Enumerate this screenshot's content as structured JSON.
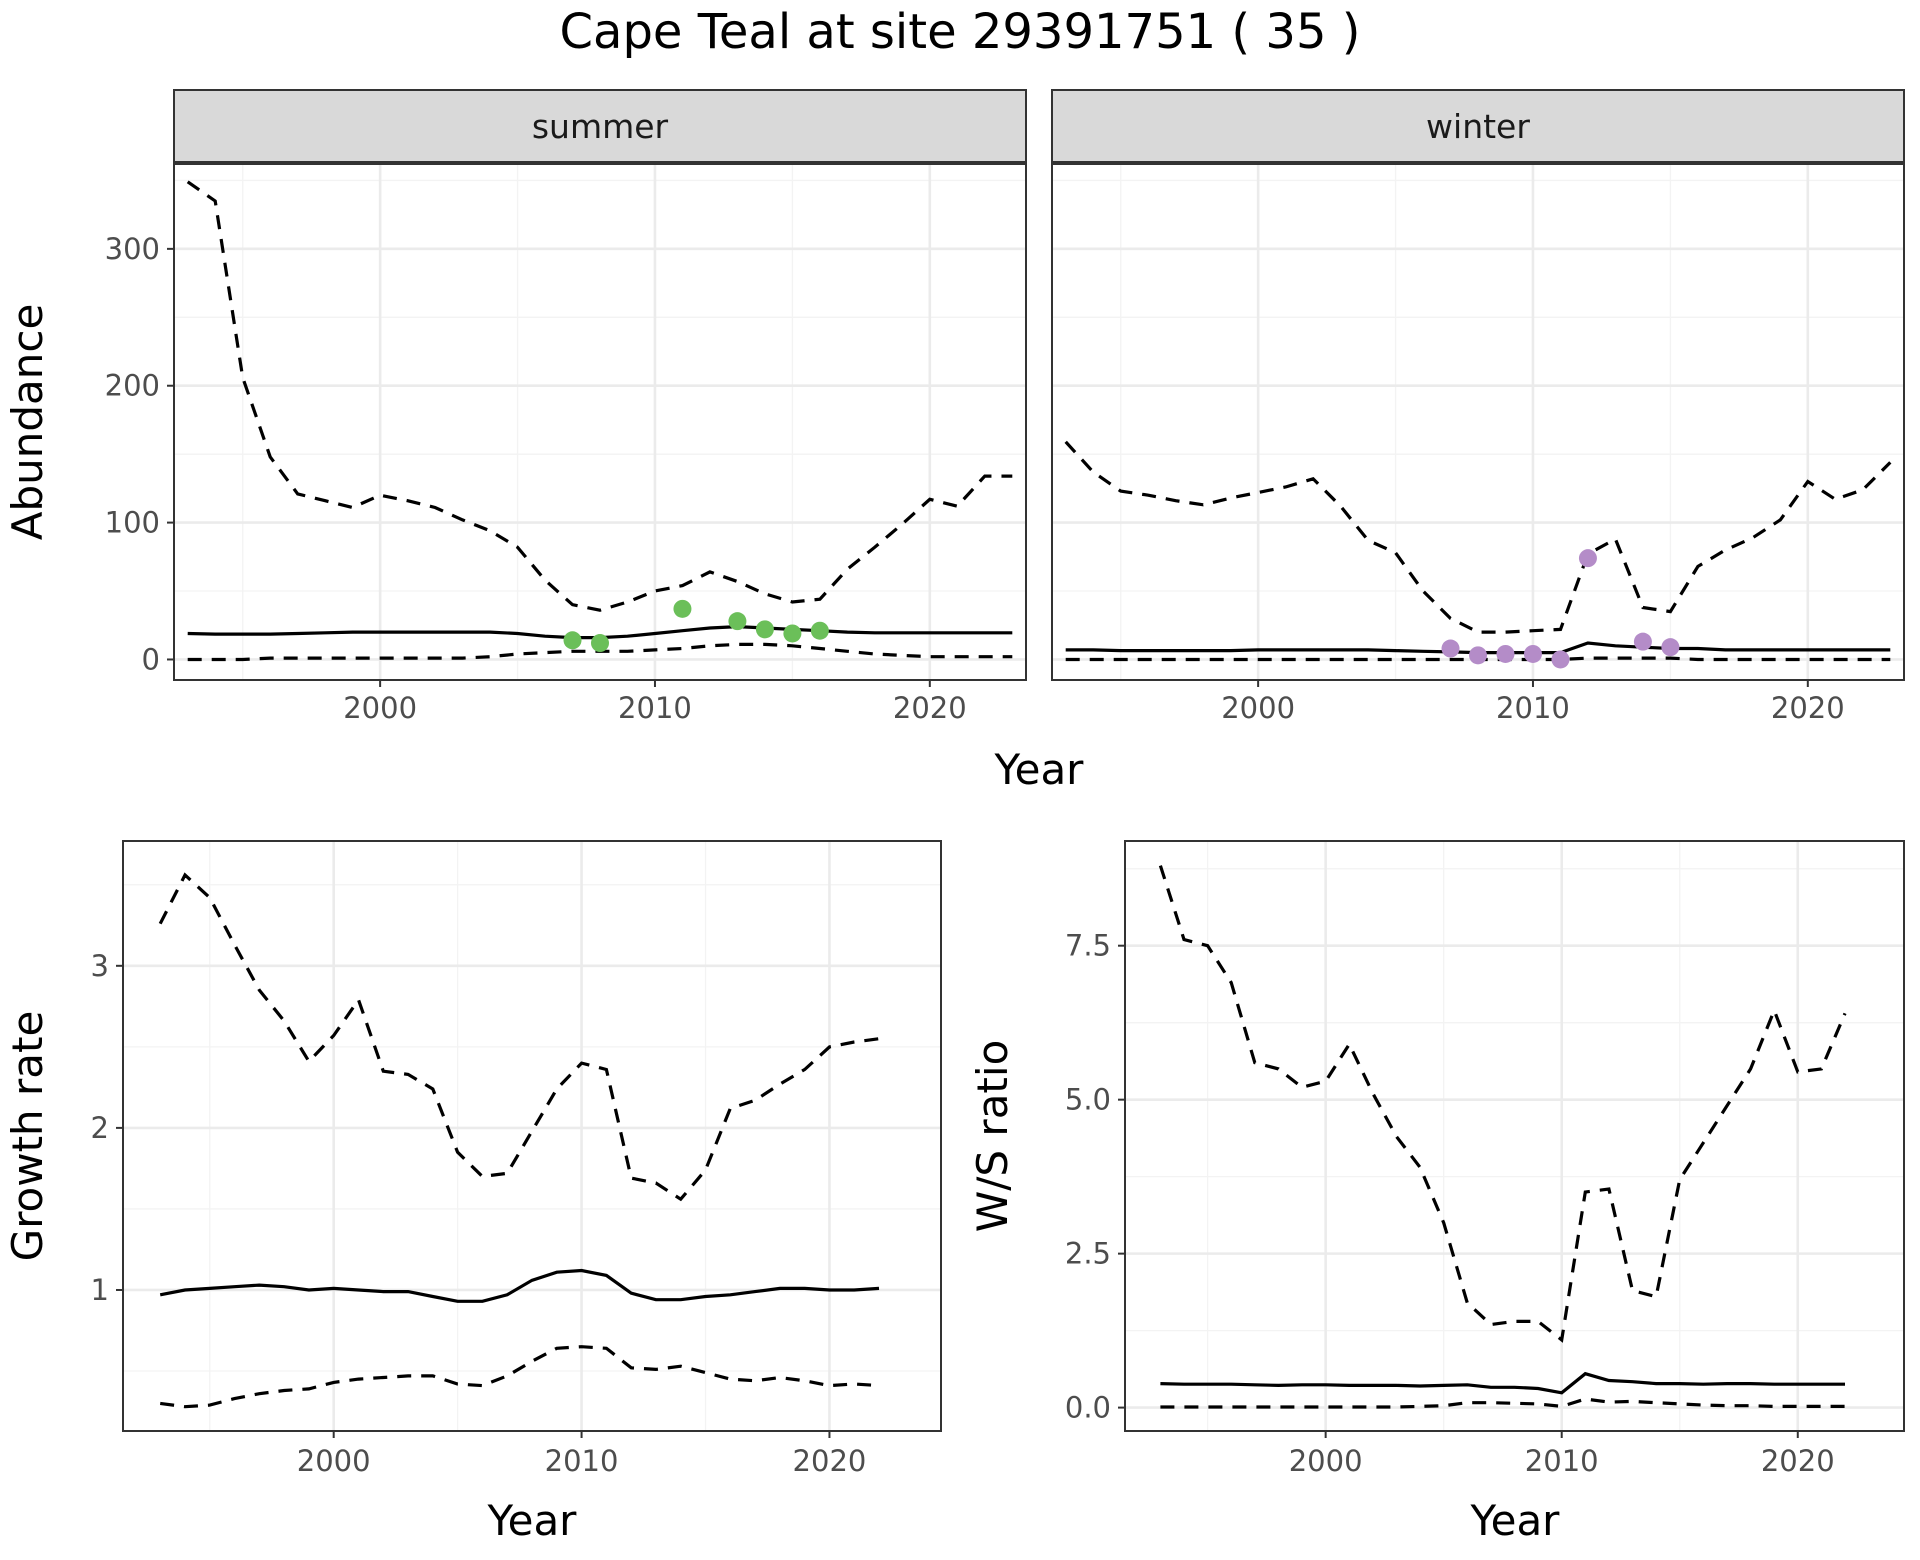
{
  "title": "Cape Teal at site 29391751 ( 35 )",
  "chart_data": [
    {
      "type": "line",
      "facet": "summer",
      "ylabel": "Abundance",
      "xlabel": "Year",
      "xlim": [
        1992.5,
        2023.5
      ],
      "ylim": [
        -15,
        362
      ],
      "x_ticks": [
        2000,
        2010,
        2020
      ],
      "y_ticks": [
        0,
        100,
        200,
        300
      ],
      "grid": true,
      "point_color": "#6bbf59",
      "series": [
        {
          "style": "solid",
          "x": [
            1993,
            1994,
            1995,
            1996,
            1997,
            1998,
            1999,
            2000,
            2001,
            2002,
            2003,
            2004,
            2005,
            2006,
            2007,
            2008,
            2009,
            2010,
            2011,
            2012,
            2013,
            2014,
            2015,
            2016,
            2017,
            2018,
            2019,
            2020,
            2021,
            2022,
            2023
          ],
          "values": [
            19,
            18.5,
            18.5,
            18.5,
            19,
            19.5,
            20,
            20,
            20,
            20,
            20,
            20,
            19,
            17,
            16,
            16,
            17,
            19,
            21,
            23,
            24,
            23,
            22,
            21,
            20,
            19.5,
            19.5,
            19.5,
            19.5,
            19.5,
            19.5
          ]
        },
        {
          "style": "dashed",
          "x": [
            1993,
            1994,
            1995,
            1996,
            1997,
            1998,
            1999,
            2000,
            2001,
            2002,
            2003,
            2004,
            2005,
            2006,
            2007,
            2008,
            2009,
            2010,
            2011,
            2012,
            2013,
            2014,
            2015,
            2016,
            2017,
            2018,
            2019,
            2020,
            2021,
            2022,
            2023
          ],
          "values": [
            349,
            335,
            206,
            148,
            121,
            116,
            111,
            120,
            116,
            111,
            102,
            94,
            82,
            58,
            40,
            36,
            42,
            50,
            54,
            64,
            57,
            48,
            42,
            44,
            66,
            82,
            99,
            117,
            112,
            134,
            134
          ]
        },
        {
          "style": "dashed",
          "x": [
            1993,
            1994,
            1995,
            1996,
            1997,
            1998,
            1999,
            2000,
            2001,
            2002,
            2003,
            2004,
            2005,
            2006,
            2007,
            2008,
            2009,
            2010,
            2011,
            2012,
            2013,
            2014,
            2015,
            2016,
            2017,
            2018,
            2019,
            2020,
            2021,
            2022,
            2023
          ],
          "values": [
            0,
            0,
            0,
            1,
            1,
            1,
            1,
            1,
            1,
            1,
            1,
            2,
            4,
            5,
            6,
            6,
            6,
            7,
            8,
            10,
            11,
            11,
            10,
            8,
            6,
            4,
            3,
            2,
            2,
            2,
            2
          ]
        }
      ],
      "points": {
        "x": [
          2007,
          2008,
          2011,
          2013,
          2014,
          2015,
          2016
        ],
        "values": [
          14,
          12,
          37,
          28,
          22,
          19,
          21
        ]
      }
    },
    {
      "type": "line",
      "facet": "winter",
      "ylabel": "",
      "xlabel": "Year",
      "xlim": [
        1992.5,
        2023.5
      ],
      "ylim": [
        -15,
        362
      ],
      "x_ticks": [
        2000,
        2010,
        2020
      ],
      "y_ticks": [
        0,
        100,
        200,
        300
      ],
      "grid": true,
      "point_color": "#b48cc8",
      "series": [
        {
          "style": "solid",
          "x": [
            1993,
            1994,
            1995,
            1996,
            1997,
            1998,
            1999,
            2000,
            2001,
            2002,
            2003,
            2004,
            2005,
            2006,
            2007,
            2008,
            2009,
            2010,
            2011,
            2012,
            2013,
            2014,
            2015,
            2016,
            2017,
            2018,
            2019,
            2020,
            2021,
            2022,
            2023
          ],
          "values": [
            7,
            7,
            6.5,
            6.5,
            6.5,
            6.5,
            6.5,
            7,
            7,
            7,
            7,
            7,
            6.5,
            6,
            5.5,
            5,
            5,
            5,
            5,
            12,
            10,
            9,
            8,
            8,
            7,
            7,
            7,
            7,
            7,
            7,
            7
          ]
        },
        {
          "style": "dashed",
          "x": [
            1993,
            1994,
            1995,
            1996,
            1997,
            1998,
            1999,
            2000,
            2001,
            2002,
            2003,
            2004,
            2005,
            2006,
            2007,
            2008,
            2009,
            2010,
            2011,
            2012,
            2013,
            2014,
            2015,
            2016,
            2017,
            2018,
            2019,
            2020,
            2021,
            2022,
            2023
          ],
          "values": [
            159,
            137,
            123,
            120,
            116,
            113,
            118,
            122,
            126,
            132,
            112,
            87,
            78,
            50,
            30,
            20,
            20,
            21,
            22,
            77,
            88,
            38,
            35,
            68,
            80,
            89,
            102,
            130,
            117,
            124,
            144
          ]
        },
        {
          "style": "dashed",
          "x": [
            1993,
            1994,
            1995,
            1996,
            1997,
            1998,
            1999,
            2000,
            2001,
            2002,
            2003,
            2004,
            2005,
            2006,
            2007,
            2008,
            2009,
            2010,
            2011,
            2012,
            2013,
            2014,
            2015,
            2016,
            2017,
            2018,
            2019,
            2020,
            2021,
            2022,
            2023
          ],
          "values": [
            0,
            0,
            0,
            0,
            0,
            0,
            0,
            0,
            0,
            0,
            0,
            0,
            0,
            0,
            0,
            0,
            0,
            0,
            0,
            1,
            1,
            1,
            1,
            0,
            0,
            0,
            0,
            0,
            0,
            0,
            0
          ]
        }
      ],
      "points": {
        "x": [
          2007,
          2008,
          2009,
          2010,
          2011,
          2012,
          2014,
          2015
        ],
        "values": [
          8,
          3,
          4,
          4,
          0,
          74,
          13,
          9
        ]
      }
    },
    {
      "type": "line",
      "ylabel": "Growth rate",
      "xlabel": "Year",
      "xlim": [
        1991.5,
        2024.5
      ],
      "ylim": [
        0.13,
        3.77
      ],
      "x_ticks": [
        2000,
        2010,
        2020
      ],
      "y_ticks": [
        1,
        2,
        3
      ],
      "grid": true,
      "series": [
        {
          "style": "solid",
          "x": [
            1993,
            1994,
            1995,
            1996,
            1997,
            1998,
            1999,
            2000,
            2001,
            2002,
            2003,
            2004,
            2005,
            2006,
            2007,
            2008,
            2009,
            2010,
            2011,
            2012,
            2013,
            2014,
            2015,
            2016,
            2017,
            2018,
            2019,
            2020,
            2021,
            2022
          ],
          "values": [
            0.97,
            1.0,
            1.01,
            1.02,
            1.03,
            1.02,
            1.0,
            1.01,
            1.0,
            0.99,
            0.99,
            0.96,
            0.93,
            0.93,
            0.97,
            1.06,
            1.11,
            1.12,
            1.09,
            0.98,
            0.94,
            0.94,
            0.96,
            0.97,
            0.99,
            1.01,
            1.01,
            1.0,
            1.0,
            1.01
          ]
        },
        {
          "style": "dashed",
          "x": [
            1993,
            1994,
            1995,
            1996,
            1997,
            1998,
            1999,
            2000,
            2001,
            2002,
            2003,
            2004,
            2005,
            2006,
            2007,
            2008,
            2009,
            2010,
            2011,
            2012,
            2013,
            2014,
            2015,
            2016,
            2017,
            2018,
            2019,
            2020,
            2021,
            2022
          ],
          "values": [
            3.26,
            3.56,
            3.42,
            3.13,
            2.85,
            2.66,
            2.41,
            2.57,
            2.79,
            2.35,
            2.33,
            2.24,
            1.85,
            1.7,
            1.72,
            1.98,
            2.24,
            2.4,
            2.36,
            1.69,
            1.66,
            1.56,
            1.74,
            2.12,
            2.17,
            2.27,
            2.36,
            2.5,
            2.53,
            2.55
          ]
        },
        {
          "style": "dashed",
          "x": [
            1993,
            1994,
            1995,
            1996,
            1997,
            1998,
            1999,
            2000,
            2001,
            2002,
            2003,
            2004,
            2005,
            2006,
            2007,
            2008,
            2009,
            2010,
            2011,
            2012,
            2013,
            2014,
            2015,
            2016,
            2017,
            2018,
            2019,
            2020,
            2021,
            2022
          ],
          "values": [
            0.3,
            0.28,
            0.29,
            0.33,
            0.36,
            0.38,
            0.39,
            0.43,
            0.45,
            0.46,
            0.47,
            0.47,
            0.42,
            0.41,
            0.47,
            0.56,
            0.64,
            0.65,
            0.64,
            0.52,
            0.51,
            0.53,
            0.49,
            0.45,
            0.44,
            0.46,
            0.44,
            0.41,
            0.42,
            0.41
          ]
        }
      ]
    },
    {
      "type": "line",
      "ylabel": "W/S ratio",
      "xlabel": "Year",
      "xlim": [
        1991.5,
        2024.5
      ],
      "ylim": [
        -0.38,
        9.2
      ],
      "x_ticks": [
        2000,
        2010,
        2020
      ],
      "y_ticks": [
        0.0,
        2.5,
        5.0,
        7.5
      ],
      "y_tick_labels": [
        "0.0",
        "2.5",
        "5.0",
        "7.5"
      ],
      "grid": true,
      "series": [
        {
          "style": "solid",
          "x": [
            1993,
            1994,
            1995,
            1996,
            1997,
            1998,
            1999,
            2000,
            2001,
            2002,
            2003,
            2004,
            2005,
            2006,
            2007,
            2008,
            2009,
            2010,
            2011,
            2012,
            2013,
            2014,
            2015,
            2016,
            2017,
            2018,
            2019,
            2020,
            2021,
            2022
          ],
          "values": [
            0.39,
            0.38,
            0.38,
            0.38,
            0.37,
            0.36,
            0.37,
            0.37,
            0.36,
            0.36,
            0.36,
            0.35,
            0.36,
            0.37,
            0.33,
            0.33,
            0.31,
            0.24,
            0.55,
            0.44,
            0.42,
            0.39,
            0.39,
            0.38,
            0.39,
            0.39,
            0.38,
            0.38,
            0.38,
            0.38
          ]
        },
        {
          "style": "dashed",
          "x": [
            1993,
            1994,
            1995,
            1996,
            1997,
            1998,
            1999,
            2000,
            2001,
            2002,
            2003,
            2004,
            2005,
            2006,
            2007,
            2008,
            2009,
            2010,
            2011,
            2012,
            2013,
            2014,
            2015,
            2016,
            2017,
            2018,
            2019,
            2020,
            2021,
            2022
          ],
          "values": [
            8.8,
            7.6,
            7.5,
            6.9,
            5.6,
            5.5,
            5.2,
            5.3,
            5.9,
            5.1,
            4.4,
            3.9,
            3.0,
            1.7,
            1.35,
            1.4,
            1.4,
            1.1,
            3.5,
            3.55,
            1.9,
            1.8,
            3.7,
            4.3,
            4.9,
            5.5,
            6.45,
            5.45,
            5.5,
            6.4
          ]
        },
        {
          "style": "dashed",
          "x": [
            1993,
            1994,
            1995,
            1996,
            1997,
            1998,
            1999,
            2000,
            2001,
            2002,
            2003,
            2004,
            2005,
            2006,
            2007,
            2008,
            2009,
            2010,
            2011,
            2012,
            2013,
            2014,
            2015,
            2016,
            2017,
            2018,
            2019,
            2020,
            2021,
            2022
          ],
          "values": [
            0.01,
            0.01,
            0.01,
            0.01,
            0.01,
            0.01,
            0.01,
            0.01,
            0.01,
            0.01,
            0.01,
            0.02,
            0.03,
            0.08,
            0.08,
            0.07,
            0.06,
            0.02,
            0.14,
            0.09,
            0.1,
            0.08,
            0.06,
            0.04,
            0.03,
            0.03,
            0.02,
            0.02,
            0.02,
            0.02
          ]
        }
      ]
    }
  ]
}
